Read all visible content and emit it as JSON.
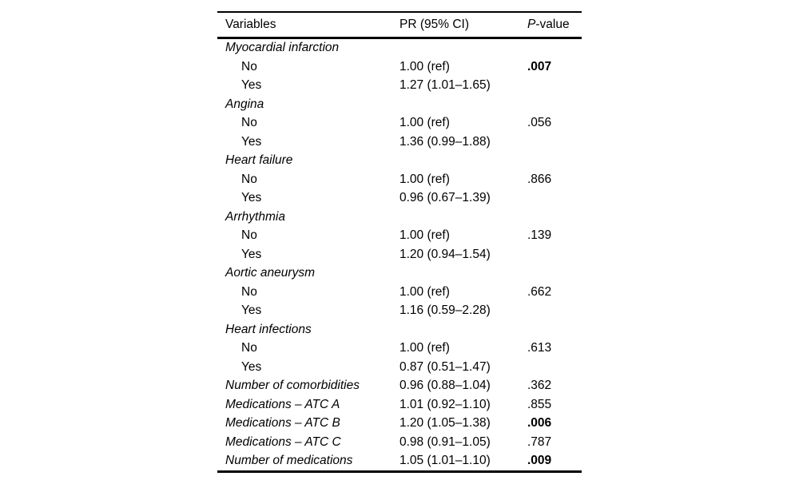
{
  "table": {
    "header": {
      "col1": "Variables",
      "col2": "PR (95% CI)",
      "col3_italic": "P",
      "col3_rest": "-value"
    },
    "rows": [
      {
        "type": "group",
        "label": "Myocardial infarction",
        "pr": "",
        "p": "",
        "bold_p": false
      },
      {
        "type": "sub",
        "label": "No",
        "pr": "1.00 (ref)",
        "p": ".007",
        "bold_p": true
      },
      {
        "type": "sub",
        "label": "Yes",
        "pr": "1.27 (1.01–1.65)",
        "p": "",
        "bold_p": false
      },
      {
        "type": "group",
        "label": "Angina",
        "pr": "",
        "p": "",
        "bold_p": false
      },
      {
        "type": "sub",
        "label": "No",
        "pr": "1.00 (ref)",
        "p": ".056",
        "bold_p": false
      },
      {
        "type": "sub",
        "label": "Yes",
        "pr": "1.36 (0.99–1.88)",
        "p": "",
        "bold_p": false
      },
      {
        "type": "group",
        "label": "Heart failure",
        "pr": "",
        "p": "",
        "bold_p": false
      },
      {
        "type": "sub",
        "label": "No",
        "pr": "1.00 (ref)",
        "p": ".866",
        "bold_p": false
      },
      {
        "type": "sub",
        "label": "Yes",
        "pr": "0.96 (0.67–1.39)",
        "p": "",
        "bold_p": false
      },
      {
        "type": "group",
        "label": "Arrhythmia",
        "pr": "",
        "p": "",
        "bold_p": false
      },
      {
        "type": "sub",
        "label": "No",
        "pr": "1.00 (ref)",
        "p": ".139",
        "bold_p": false
      },
      {
        "type": "sub",
        "label": "Yes",
        "pr": "1.20 (0.94–1.54)",
        "p": "",
        "bold_p": false
      },
      {
        "type": "group",
        "label": "Aortic aneurysm",
        "pr": "",
        "p": "",
        "bold_p": false
      },
      {
        "type": "sub",
        "label": "No",
        "pr": "1.00 (ref)",
        "p": ".662",
        "bold_p": false
      },
      {
        "type": "sub",
        "label": "Yes",
        "pr": "1.16 (0.59–2.28)",
        "p": "",
        "bold_p": false
      },
      {
        "type": "group",
        "label": "Heart infections",
        "pr": "",
        "p": "",
        "bold_p": false
      },
      {
        "type": "sub",
        "label": "No",
        "pr": "1.00 (ref)",
        "p": ".613",
        "bold_p": false
      },
      {
        "type": "sub",
        "label": "Yes",
        "pr": "0.87 (0.51–1.47)",
        "p": "",
        "bold_p": false
      },
      {
        "type": "group-data",
        "label": "Number of comorbidities",
        "pr": "0.96 (0.88–1.04)",
        "p": ".362",
        "bold_p": false
      },
      {
        "type": "group-data",
        "label": "Medications – ATC A",
        "pr": "1.01 (0.92–1.10)",
        "p": ".855",
        "bold_p": false
      },
      {
        "type": "group-data",
        "label": "Medications – ATC B",
        "pr": "1.20 (1.05–1.38)",
        "p": ".006",
        "bold_p": true
      },
      {
        "type": "group-data",
        "label": "Medications – ATC C",
        "pr": "0.98 (0.91–1.05)",
        "p": ".787",
        "bold_p": false
      },
      {
        "type": "group-data",
        "label": "Number of medications",
        "pr": "1.05 (1.01–1.10)",
        "p": ".009",
        "bold_p": true
      }
    ]
  }
}
